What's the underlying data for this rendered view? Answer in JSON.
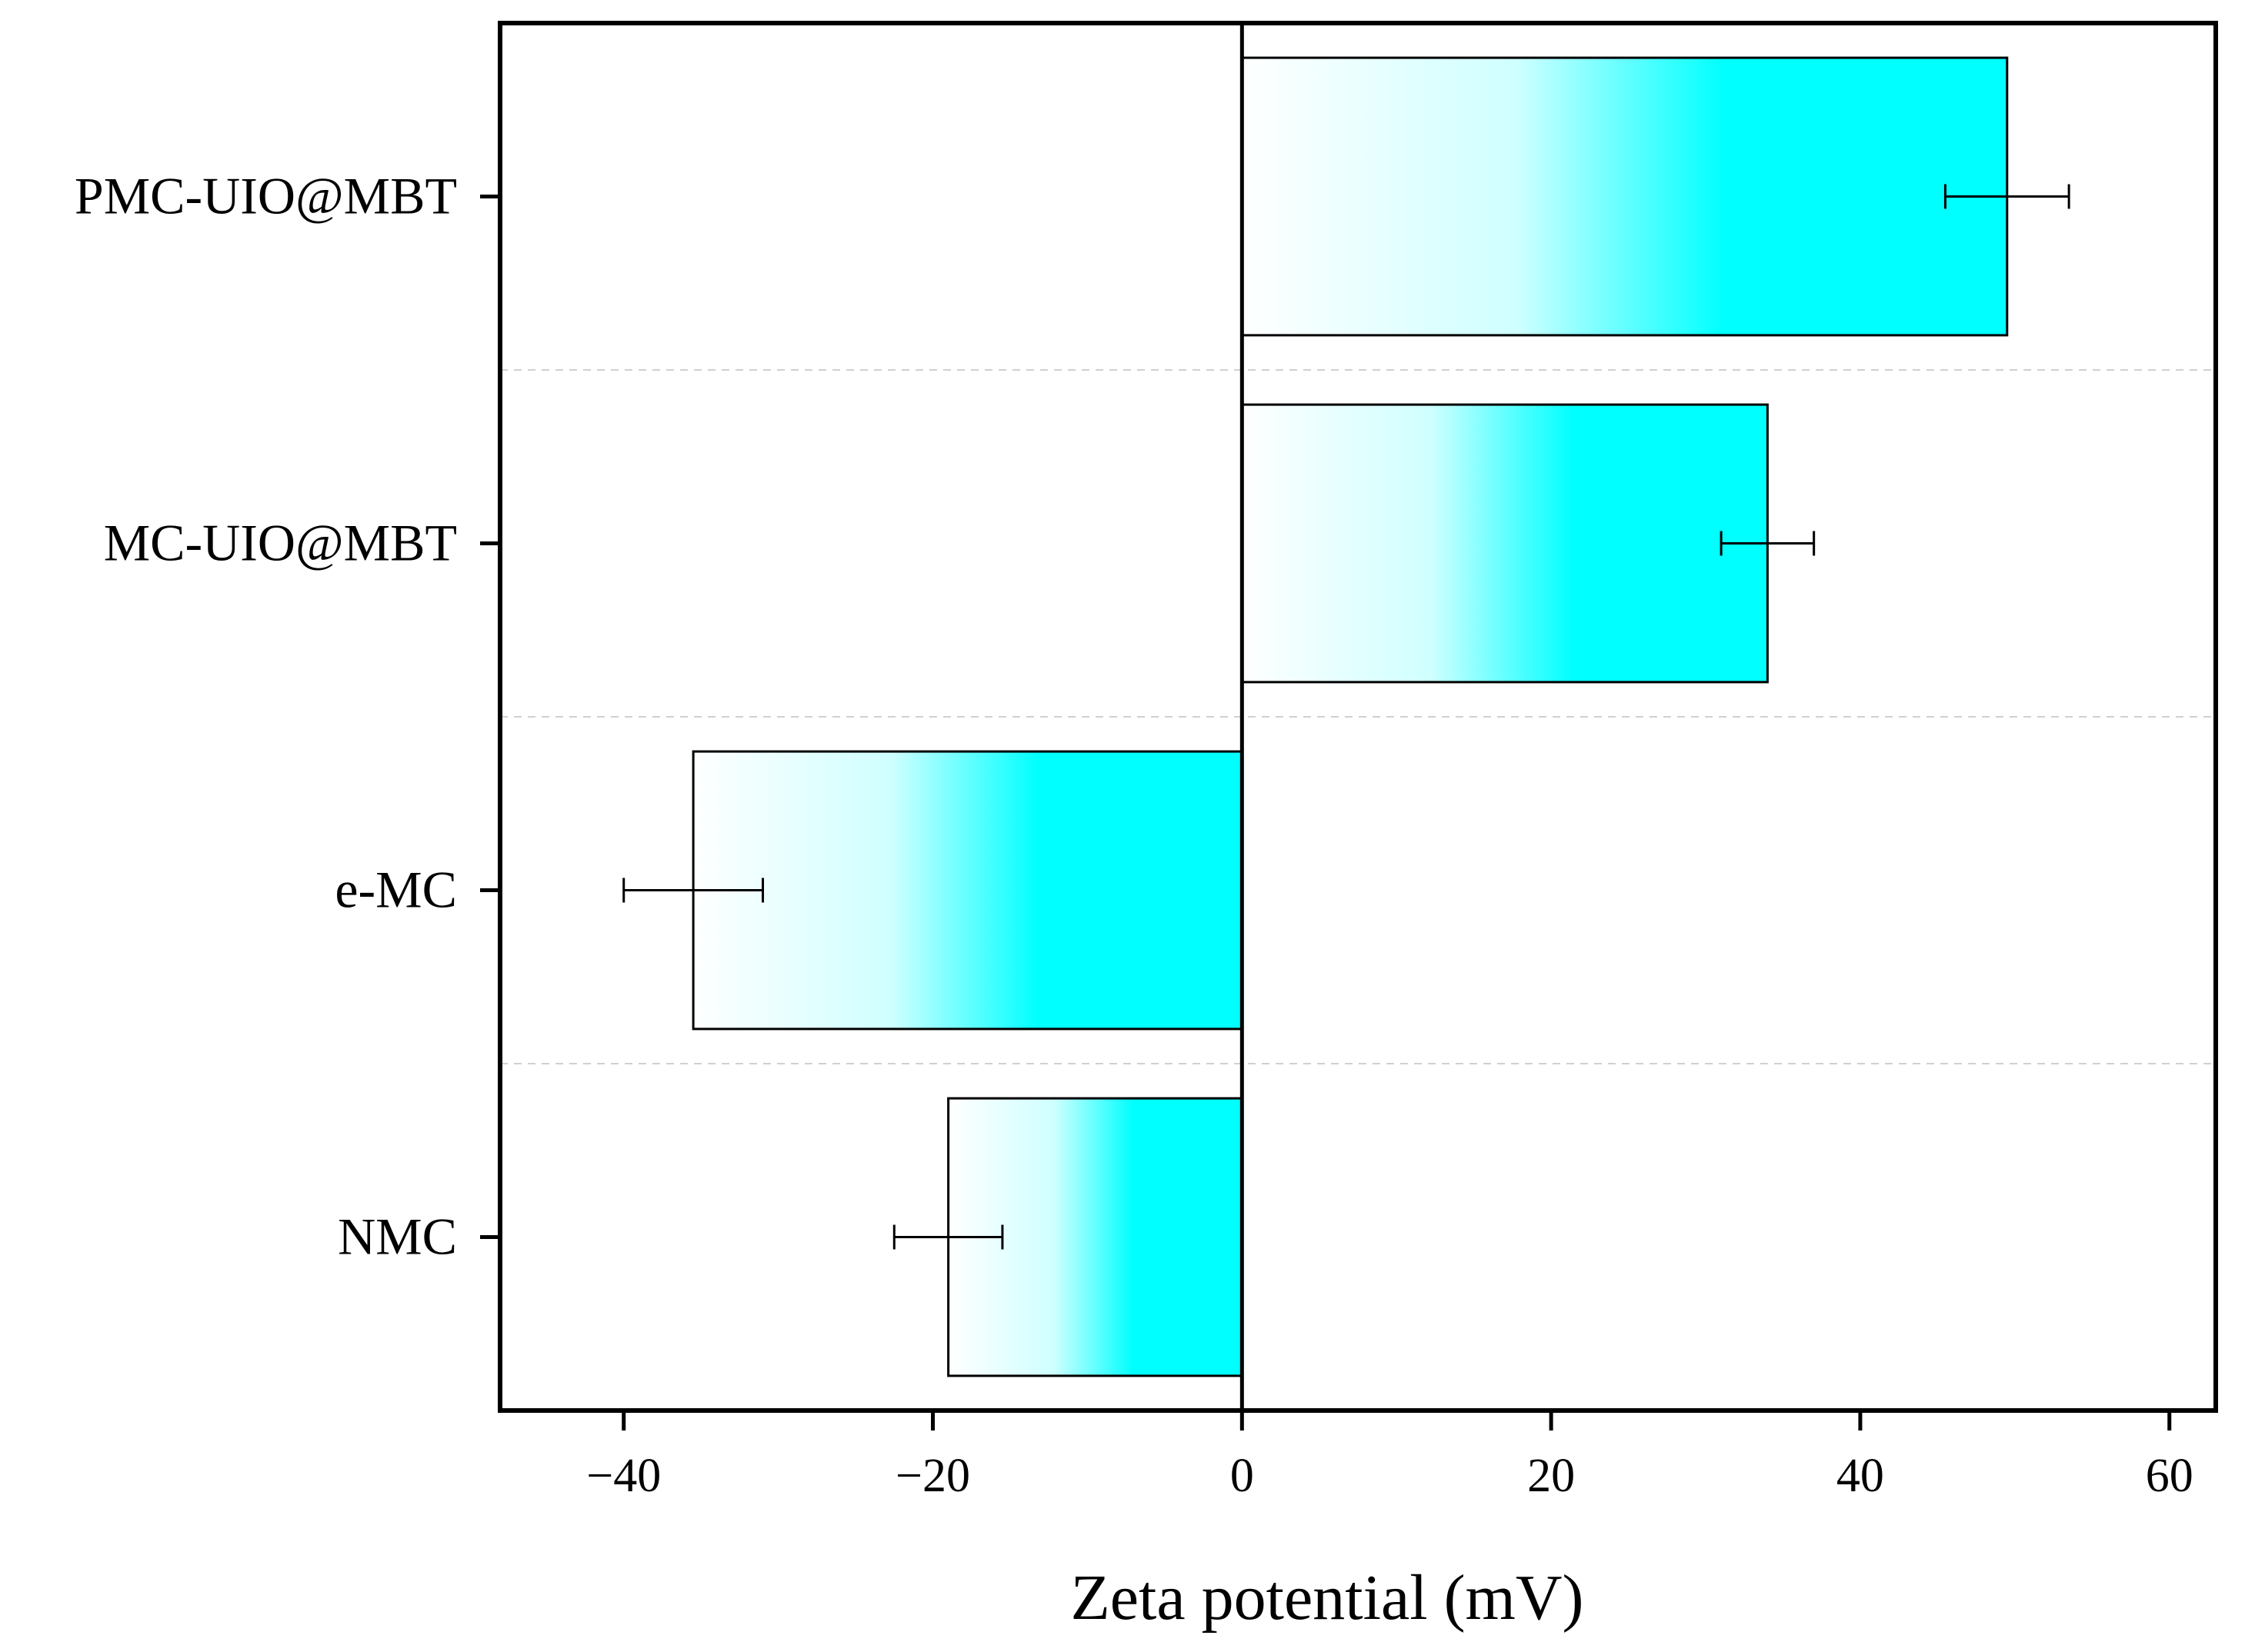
{
  "chart_data": {
    "type": "bar",
    "orientation": "horizontal",
    "categories": [
      "NMC",
      "e-MC",
      "MC-UIO@MBT",
      "PMC-UIO@MBT"
    ],
    "series": [
      {
        "values": [
          -19.0,
          -35.5,
          34.0,
          49.5
        ],
        "errors": [
          3.5,
          4.5,
          3.0,
          4.0
        ]
      }
    ],
    "xlabel": "Zeta potential (mV)",
    "ylabel": "",
    "xlim": [
      -48,
      63
    ],
    "xticks": [
      -40,
      -20,
      0,
      20,
      40,
      60
    ],
    "xtick_labels": [
      "−40",
      "−20",
      "0",
      "20",
      "40",
      "60"
    ],
    "grid": "horizontal dashed separators between categories",
    "bar_gradient": {
      "from": "#ffffff",
      "to": "#00ffff"
    },
    "zero_line": true
  }
}
